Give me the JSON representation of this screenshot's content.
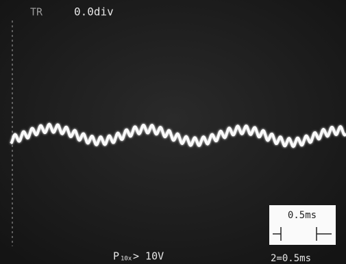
{
  "screen": {
    "trigger_label": "TR",
    "trigger_position": "0.0div",
    "scale_box": "0.5ms",
    "probe": {
      "prefix": "P",
      "subscript": "10x",
      "setting": "> 10V"
    },
    "timebase": "2=0.5ms"
  }
}
